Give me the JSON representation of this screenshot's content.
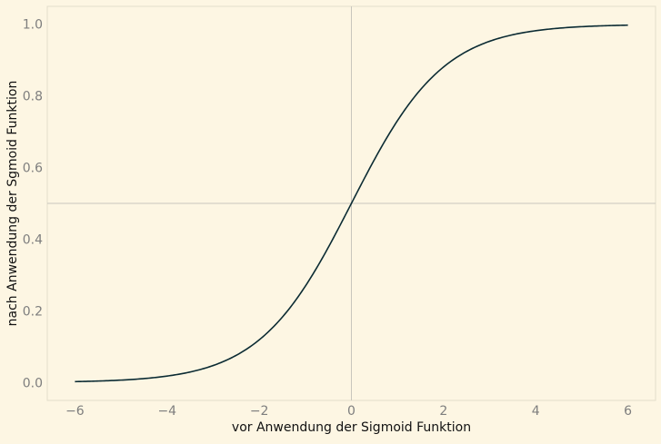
{
  "chart_data": {
    "type": "line",
    "title": "",
    "xlabel": "vor Anwendung der Sigmoid Funktion",
    "ylabel": "nach Anwendung der Sgmoid Funktion",
    "xlim": [
      -6.6,
      6.6
    ],
    "ylim": [
      -0.05,
      1.05
    ],
    "xticks": [
      -6,
      -4,
      -2,
      0,
      2,
      4,
      6
    ],
    "xtick_labels": [
      "−6",
      "−4",
      "−2",
      "0",
      "2",
      "4",
      "6"
    ],
    "yticks": [
      0.0,
      0.2,
      0.4,
      0.6,
      0.8,
      1.0
    ],
    "ytick_labels": [
      "0.0",
      "0.2",
      "0.4",
      "0.6",
      "0.8",
      "1.0"
    ],
    "reference_lines": {
      "x": 0,
      "y": 0.5
    },
    "grid": false,
    "legend": "none",
    "series": [
      {
        "x": [
          -6,
          -5.5,
          -5,
          -4.5,
          -4,
          -3.5,
          -3,
          -2.5,
          -2,
          -1.5,
          -1,
          -0.5,
          0,
          0.5,
          1,
          1.5,
          2,
          2.5,
          3,
          3.5,
          4,
          4.5,
          5,
          5.5,
          6
        ],
        "y": [
          0.0025,
          0.0041,
          0.0067,
          0.011,
          0.018,
          0.0293,
          0.0474,
          0.0759,
          0.1192,
          0.1824,
          0.2689,
          0.3775,
          0.5,
          0.6225,
          0.7311,
          0.8176,
          0.8808,
          0.9241,
          0.9526,
          0.9707,
          0.982,
          0.989,
          0.9933,
          0.9959,
          0.9975
        ]
      }
    ],
    "colors": {
      "background": "#fdf6e3",
      "axes_edge": "#e3ddcb",
      "reference_line": "#c9c6bd",
      "line": "#0b2b33",
      "tick_label": "#7e7e7e",
      "axis_label": "#111111"
    }
  }
}
